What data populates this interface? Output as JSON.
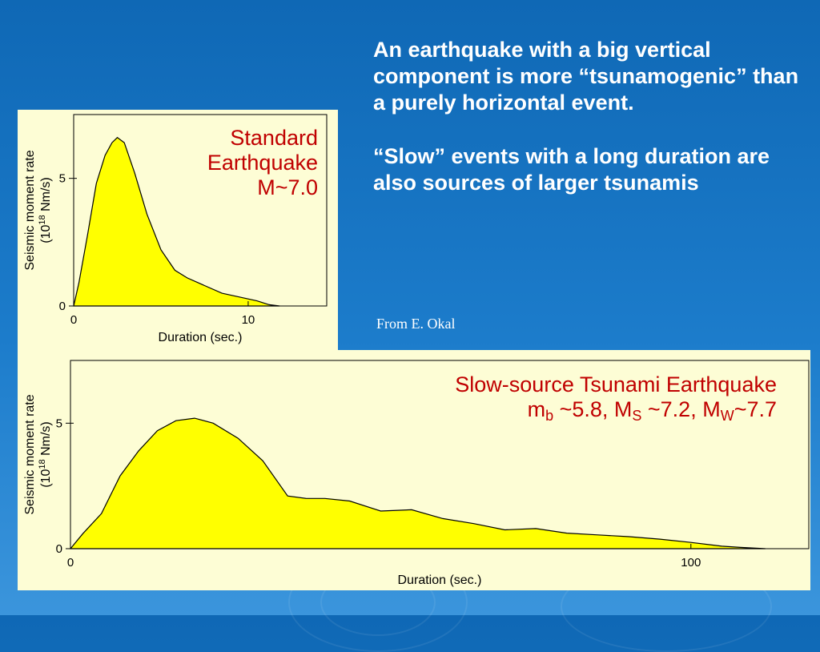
{
  "slide": {
    "bullets": [
      "An earthquake with a big vertical component is more “tsunamogenic” than a purely horizontal event.",
      "“Slow” events with a long duration are also sources of larger tsunamis"
    ],
    "credit": "From E. Okal",
    "colors": {
      "background": "#1a74c4",
      "panel": "#fdfdd5",
      "fill": "#ffff00",
      "annotation": "#c00000"
    }
  },
  "charts": {
    "top_annotation": [
      "Standard",
      "Earthquake",
      "M~7.0"
    ],
    "bottom_annotation": {
      "line1": "Slow-source Tsunami Earthquake",
      "mb_base": "m",
      "mb_sub": "b",
      "mb_val": " ~5.8, M",
      "ms_sub": "S",
      "ms_val": " ~7.2, M",
      "mw_sub": "W",
      "mw_val": "~7.7"
    }
  },
  "chart_data": [
    {
      "type": "area",
      "xlabel": "Duration (sec.)",
      "ylabel_line1": "Seismic moment rate",
      "ylabel_line2_pre": "(10",
      "ylabel_sup": "18",
      "ylabel_line2_post": " Nm/s)",
      "xlim": [
        0,
        14.5
      ],
      "ylim": [
        0,
        7.5
      ],
      "xticks": [
        {
          "value": 0,
          "label": "0"
        },
        {
          "value": 10,
          "label": "10"
        }
      ],
      "yticks": [
        {
          "value": 0,
          "label": "0"
        },
        {
          "value": 5,
          "label": "5"
        }
      ],
      "x": [
        0,
        0.3,
        0.8,
        1.3,
        1.8,
        2.2,
        2.5,
        2.9,
        3.5,
        4.2,
        5.0,
        5.8,
        6.5,
        7.5,
        8.5,
        9.5,
        10.5,
        11.2,
        11.8
      ],
      "y": [
        0,
        0.9,
        2.8,
        4.8,
        5.9,
        6.4,
        6.6,
        6.4,
        5.2,
        3.6,
        2.2,
        1.4,
        1.1,
        0.8,
        0.5,
        0.35,
        0.2,
        0.05,
        0
      ]
    },
    {
      "type": "area",
      "xlabel": "Duration (sec.)",
      "ylabel_line1": "Seismic moment rate",
      "ylabel_line2_pre": "(10",
      "ylabel_sup": "18",
      "ylabel_line2_post": " Nm/s)",
      "xlim": [
        0,
        119
      ],
      "ylim": [
        0,
        7.5
      ],
      "xticks": [
        {
          "value": 0,
          "label": "0"
        },
        {
          "value": 100,
          "label": "100"
        }
      ],
      "yticks": [
        {
          "value": 0,
          "label": "0"
        },
        {
          "value": 5,
          "label": "5"
        }
      ],
      "x": [
        0,
        2,
        5,
        8,
        11,
        14,
        17,
        20,
        23,
        27,
        31,
        35,
        38,
        41,
        45,
        50,
        55,
        60,
        65,
        70,
        75,
        80,
        85,
        90,
        95,
        100,
        105,
        108,
        112
      ],
      "y": [
        0,
        0.6,
        1.4,
        2.9,
        3.9,
        4.7,
        5.1,
        5.2,
        5.0,
        4.4,
        3.5,
        2.1,
        2.0,
        2.0,
        1.9,
        1.5,
        1.55,
        1.2,
        1.0,
        0.75,
        0.8,
        0.62,
        0.55,
        0.48,
        0.38,
        0.25,
        0.1,
        0.05,
        0
      ]
    }
  ]
}
